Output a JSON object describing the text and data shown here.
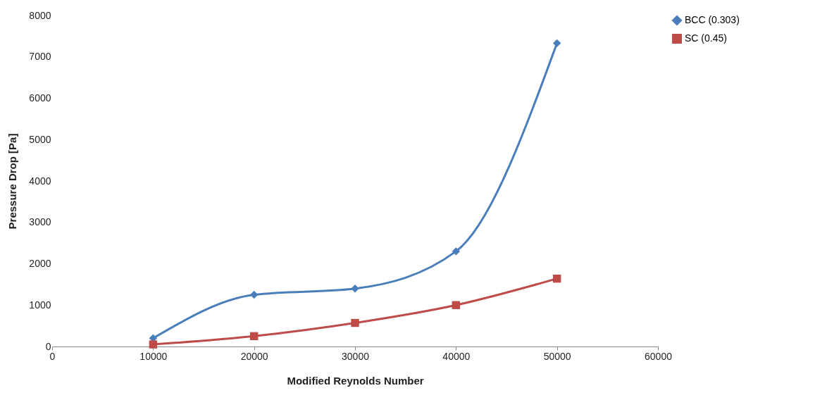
{
  "chart_data": {
    "type": "line",
    "xlabel": "Modified Reynolds Number",
    "ylabel": "Pressure Drop [Pa]",
    "x": [
      10000,
      20000,
      30000,
      40000,
      50000
    ],
    "series": [
      {
        "name": "BCC (0.303)",
        "color": "#4a7ebb",
        "marker": "diamond",
        "values": [
          200,
          1250,
          1400,
          2300,
          7330
        ]
      },
      {
        "name": "SC (0.45)",
        "color": "#be4b48",
        "marker": "square",
        "values": [
          50,
          250,
          570,
          1000,
          1640
        ]
      }
    ],
    "xlim": [
      0,
      60000
    ],
    "xticks": [
      0,
      10000,
      20000,
      30000,
      40000,
      50000,
      60000
    ],
    "ylim": [
      0,
      8000
    ],
    "yticks": [
      0,
      1000,
      2000,
      3000,
      4000,
      5000,
      6000,
      7000,
      8000
    ],
    "grid": false,
    "legend": "right",
    "line_style": "solid"
  }
}
